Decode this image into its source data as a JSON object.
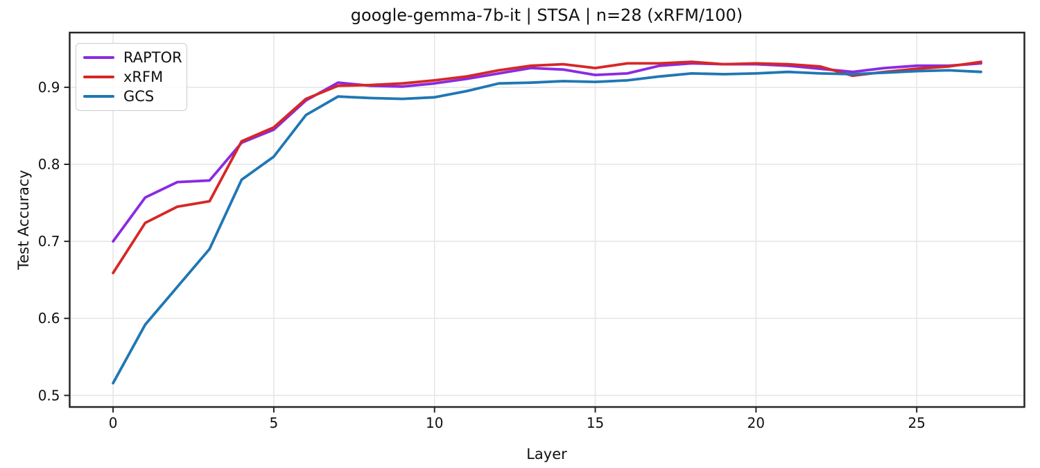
{
  "chart_data": {
    "type": "line",
    "title": "google-gemma-7b-it | STSA | n=28 (xRFM/100)",
    "xlabel": "Layer",
    "ylabel": "Test Accuracy",
    "x": [
      0,
      1,
      2,
      3,
      4,
      5,
      6,
      7,
      8,
      9,
      10,
      11,
      12,
      13,
      14,
      15,
      16,
      17,
      18,
      19,
      20,
      21,
      22,
      23,
      24,
      25,
      26,
      27
    ],
    "series": [
      {
        "name": "RAPTOR",
        "color": "#8a2be2",
        "values": [
          0.7,
          0.757,
          0.777,
          0.779,
          0.828,
          0.845,
          0.883,
          0.906,
          0.902,
          0.901,
          0.905,
          0.911,
          0.918,
          0.925,
          0.923,
          0.916,
          0.918,
          0.928,
          0.931,
          0.93,
          0.93,
          0.928,
          0.924,
          0.92,
          0.925,
          0.928,
          0.928,
          0.931
        ]
      },
      {
        "name": "xRFM",
        "color": "#d62728",
        "values": [
          0.659,
          0.724,
          0.745,
          0.752,
          0.83,
          0.848,
          0.885,
          0.902,
          0.903,
          0.905,
          0.909,
          0.914,
          0.922,
          0.928,
          0.93,
          0.925,
          0.931,
          0.931,
          0.933,
          0.93,
          0.931,
          0.93,
          0.927,
          0.915,
          0.92,
          0.924,
          0.927,
          0.933
        ]
      },
      {
        "name": "GCS",
        "color": "#1f77b4",
        "values": [
          0.516,
          0.592,
          0.641,
          0.69,
          0.78,
          0.81,
          0.864,
          0.888,
          0.886,
          0.885,
          0.887,
          0.895,
          0.905,
          0.906,
          0.908,
          0.907,
          0.909,
          0.914,
          0.918,
          0.917,
          0.918,
          0.92,
          0.918,
          0.917,
          0.919,
          0.921,
          0.922,
          0.92
        ]
      }
    ],
    "xlim": [
      -1.35,
      28.35
    ],
    "ylim": [
      0.485,
      0.971
    ],
    "xticks": [
      0,
      5,
      10,
      15,
      20,
      25
    ],
    "yticks": [
      0.5,
      0.6,
      0.7,
      0.8,
      0.9
    ],
    "grid": true,
    "legend_position": "upper left",
    "colors": {
      "grid": "#e6e6e6",
      "spine": "#262626",
      "tick_label": "#111111",
      "background": "#ffffff"
    }
  }
}
